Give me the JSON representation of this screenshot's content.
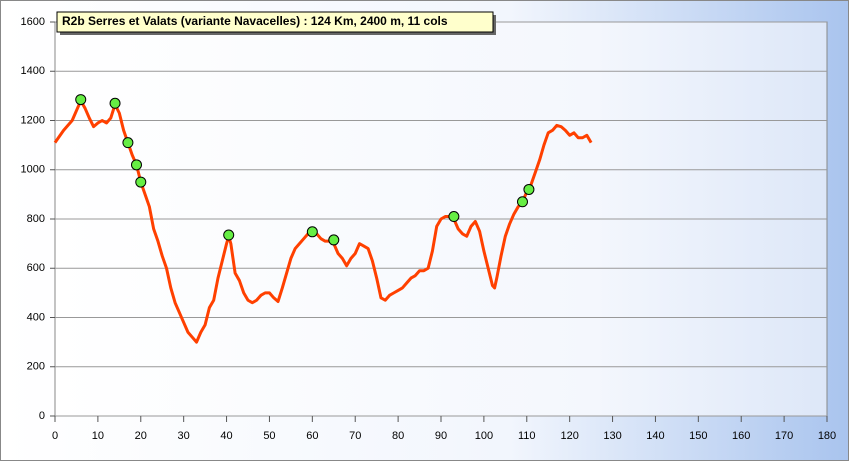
{
  "chart_data": {
    "type": "line",
    "title": "R2b Serres et Valats (variante Navacelles) : 124 Km, 2400 m, 11 cols",
    "xlim": [
      0,
      180
    ],
    "xticks": [
      0,
      10,
      20,
      30,
      40,
      50,
      60,
      70,
      80,
      90,
      100,
      110,
      120,
      130,
      140,
      150,
      160,
      170,
      180
    ],
    "ylim": [
      0,
      1600
    ],
    "yticks": [
      0,
      200,
      400,
      600,
      800,
      1000,
      1200,
      1400,
      1600
    ],
    "grid": true,
    "series": [
      {
        "color": "#ff4000",
        "x": [
          0,
          2,
          4,
          6,
          7,
          8,
          9,
          10,
          11,
          12,
          13,
          14,
          15,
          16,
          17,
          18,
          19,
          20,
          21,
          22,
          23,
          24,
          25,
          26,
          27,
          28,
          29,
          30,
          31,
          32,
          33,
          34,
          35,
          36,
          37,
          38,
          39,
          40,
          40.5,
          41,
          42,
          43,
          44,
          45,
          46,
          47,
          48,
          49,
          50,
          51,
          52,
          53,
          54,
          55,
          56,
          57,
          58,
          59,
          60,
          61,
          62,
          63,
          64,
          65,
          66,
          67,
          68,
          69,
          70,
          71,
          72,
          73,
          74,
          75,
          76,
          77,
          78,
          79,
          80,
          81,
          82,
          83,
          84,
          85,
          86,
          87,
          88,
          89,
          90,
          91,
          92,
          93,
          94,
          95,
          96,
          97,
          98,
          99,
          100,
          101,
          102,
          102.5,
          103,
          104,
          105,
          106,
          107,
          108,
          109,
          110,
          111,
          112,
          113,
          114,
          115,
          116,
          117,
          118,
          119,
          120,
          121,
          122,
          123,
          124,
          125
        ],
        "values": [
          1110,
          1160,
          1200,
          1280,
          1250,
          1210,
          1175,
          1190,
          1200,
          1190,
          1210,
          1265,
          1230,
          1160,
          1110,
          1060,
          1020,
          950,
          900,
          850,
          760,
          710,
          650,
          600,
          520,
          460,
          420,
          380,
          340,
          320,
          300,
          340,
          370,
          440,
          470,
          560,
          630,
          700,
          730,
          700,
          580,
          550,
          500,
          470,
          460,
          470,
          490,
          500,
          500,
          480,
          465,
          520,
          580,
          640,
          680,
          700,
          720,
          740,
          745,
          740,
          720,
          710,
          710,
          700,
          660,
          640,
          610,
          640,
          660,
          700,
          690,
          680,
          630,
          560,
          480,
          470,
          490,
          500,
          510,
          520,
          540,
          560,
          570,
          590,
          590,
          600,
          670,
          770,
          800,
          810,
          810,
          800,
          760,
          740,
          730,
          770,
          790,
          750,
          670,
          600,
          530,
          520,
          560,
          650,
          730,
          780,
          820,
          850,
          870,
          910,
          940,
          990,
          1040,
          1100,
          1150,
          1160,
          1180,
          1175,
          1160,
          1140,
          1150,
          1130,
          1130,
          1140,
          1110
        ]
      }
    ],
    "markers": {
      "color": "#66ee44",
      "x": [
        6,
        14,
        17,
        19,
        20,
        40.5,
        60,
        65,
        93,
        109,
        110.5
      ],
      "values": [
        1285,
        1270,
        1110,
        1020,
        950,
        735,
        748,
        715,
        810,
        870,
        920
      ]
    }
  }
}
